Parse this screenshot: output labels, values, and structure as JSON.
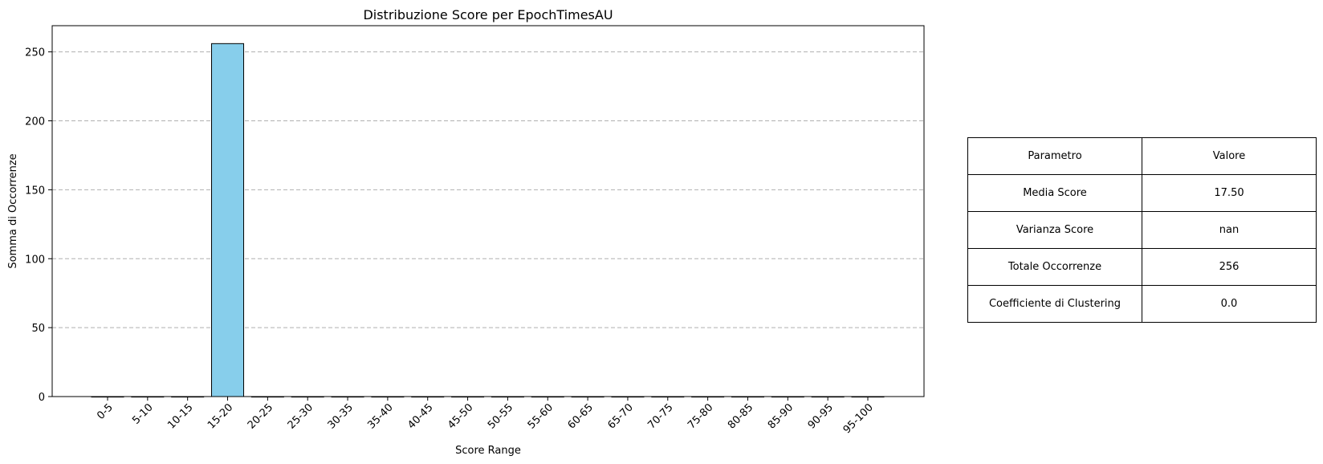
{
  "chart_data": {
    "type": "bar",
    "title": "Distribuzione Score per EpochTimesAU",
    "xlabel": "Score Range",
    "ylabel": "Somma di Occorrenze",
    "categories": [
      "0-5",
      "5-10",
      "10-15",
      "15-20",
      "20-25",
      "25-30",
      "30-35",
      "35-40",
      "40-45",
      "45-50",
      "50-55",
      "55-60",
      "60-65",
      "65-70",
      "70-75",
      "75-80",
      "80-85",
      "85-90",
      "90-95",
      "95-100"
    ],
    "values": [
      0,
      0,
      0,
      256,
      0,
      0,
      0,
      0,
      0,
      0,
      0,
      0,
      0,
      0,
      0,
      0,
      0,
      0,
      0,
      0
    ],
    "ylim": [
      0,
      269
    ],
    "yticks": [
      0,
      50,
      100,
      150,
      200,
      250
    ],
    "grid": "y-dashed",
    "bar_color": "#87CEEB",
    "edge_color": "#000000"
  },
  "table": {
    "headers": [
      "Parametro",
      "Valore"
    ],
    "rows": [
      [
        "Media Score",
        "17.50"
      ],
      [
        "Varianza Score",
        "nan"
      ],
      [
        "Totale Occorrenze",
        "256"
      ],
      [
        "Coefficiente di Clustering",
        "0.0"
      ]
    ]
  }
}
